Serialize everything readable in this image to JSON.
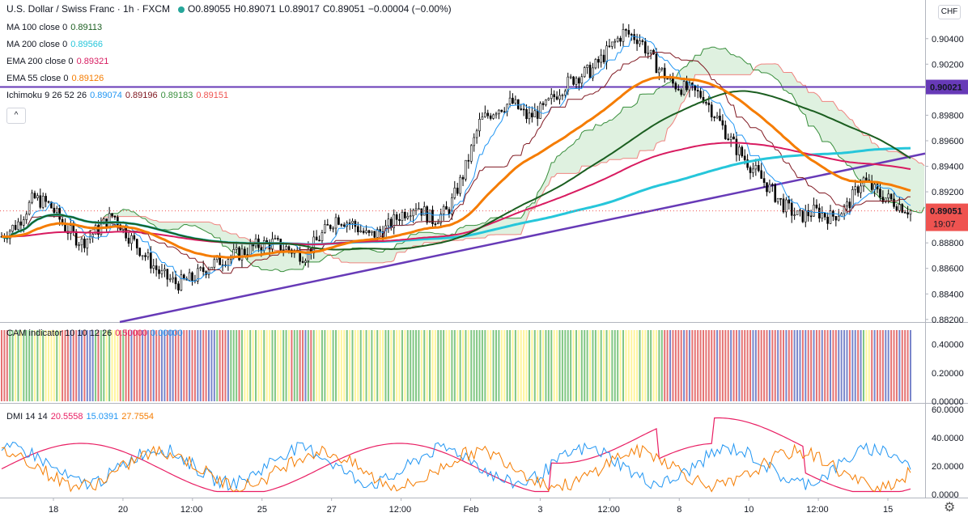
{
  "header": {
    "symbol": "U.S. Dollar / Swiss Franc · 1h · FXCM",
    "open": "O0.89055",
    "high": "H0.89071",
    "low": "L0.89017",
    "close": "C0.89051",
    "change": "−0.00004 (−0.00%)",
    "currency_button": "CHF"
  },
  "indicators": [
    {
      "name": "MA 100 close 0",
      "values": [
        "0.89113"
      ],
      "colors": [
        "#1b5e20"
      ]
    },
    {
      "name": "MA 200 close 0",
      "values": [
        "0.89566"
      ],
      "colors": [
        "#26c6da"
      ]
    },
    {
      "name": "EMA 200 close 0",
      "values": [
        "0.89321"
      ],
      "colors": [
        "#d81b60"
      ]
    },
    {
      "name": "EMA 55 close 0",
      "values": [
        "0.89126"
      ],
      "colors": [
        "#f57c00"
      ]
    },
    {
      "name": "Ichimoku 9 26 52 26",
      "values": [
        "0.89074",
        "0.89196",
        "0.89183",
        "0.89151"
      ],
      "colors": [
        "#2196f3",
        "#801922",
        "#388e3c",
        "#ef5350"
      ]
    }
  ],
  "cam": {
    "name": "CAM indicator 10 10 12 26",
    "values": [
      "0.50000",
      "0.00000"
    ],
    "colors": [
      "#e91e63",
      "#2196f3"
    ]
  },
  "dmi": {
    "name": "DMI 14 14",
    "values": [
      "20.5558",
      "15.0391",
      "27.7554"
    ],
    "colors": [
      "#e91e63",
      "#2196f3",
      "#f57c00"
    ]
  },
  "price_labels": {
    "line": "0.90021",
    "current": "0.89051",
    "countdown": "19:07"
  },
  "colors": {
    "ma100": "#1b5e20",
    "ma200": "#26c6da",
    "ema200": "#d81b60",
    "ema55": "#f57c00",
    "tenkan": "#2196f3",
    "kijun": "#801922",
    "span_a": "#388e3c",
    "span_b": "#ef5350",
    "trend": "#673ab7",
    "up": "#000000"
  },
  "chart_data": [
    {
      "type": "candlestick",
      "title": "U.S. Dollar / Swiss Franc · 1h · FXCM",
      "x_ticks": [
        "18",
        "20",
        "12:00",
        "25",
        "27",
        "12:00",
        "Feb",
        "3",
        "12:00",
        "8",
        "10",
        "12:00",
        "15"
      ],
      "y_ticks": [
        "0.88200",
        "0.88400",
        "0.88600",
        "0.88800",
        "0.89000",
        "0.89200",
        "0.89400",
        "0.89600",
        "0.89800",
        "0.90000",
        "0.90200",
        "0.90400"
      ],
      "ylim": [
        0.8818,
        0.9069
      ],
      "horizontal_line": 0.90021,
      "trend_line": [
        [
          0.8818,
          0.895
        ]
      ],
      "close_path": [
        0.8885,
        0.8895,
        0.8915,
        0.891,
        0.8892,
        0.888,
        0.889,
        0.8902,
        0.8885,
        0.887,
        0.8855,
        0.8848,
        0.8852,
        0.8862,
        0.8868,
        0.8872,
        0.8878,
        0.888,
        0.8875,
        0.887,
        0.8885,
        0.89,
        0.8895,
        0.8885,
        0.889,
        0.8902,
        0.891,
        0.8898,
        0.8905,
        0.8935,
        0.8975,
        0.8985,
        0.899,
        0.8978,
        0.8985,
        0.9,
        0.901,
        0.9015,
        0.903,
        0.9045,
        0.904,
        0.902,
        0.9005,
        0.9,
        0.8995,
        0.8975,
        0.8955,
        0.894,
        0.8925,
        0.891,
        0.89,
        0.8905,
        0.89,
        0.8908,
        0.893,
        0.8918,
        0.8912,
        0.8905
      ]
    },
    {
      "type": "bar",
      "title": "CAM indicator 10 10 12 26",
      "y_ticks": [
        "0.00000",
        "0.20000",
        "0.40000"
      ],
      "ylim": [
        0,
        0.5
      ],
      "legend": [
        "0.50000",
        "0.00000"
      ]
    },
    {
      "type": "line",
      "title": "DMI 14 14",
      "y_ticks": [
        "0.0000",
        "20.0000",
        "40.0000",
        "60.0000"
      ],
      "ylim": [
        0,
        60
      ],
      "legend": [
        "20.5558",
        "15.0391",
        "27.7554"
      ]
    }
  ]
}
